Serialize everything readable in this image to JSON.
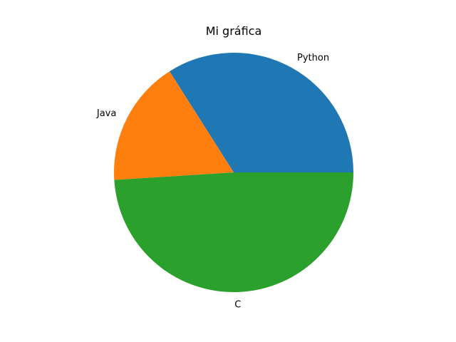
{
  "chart_data": {
    "type": "pie",
    "title": "Mi gráfica",
    "labels": [
      "Python",
      "Java",
      "C"
    ],
    "values": [
      34,
      17,
      49
    ],
    "colors": [
      "#1f77b4",
      "#ff7f0e",
      "#2ca02c"
    ],
    "start_angle": 0,
    "direction": "counterclockwise",
    "legend": "none"
  }
}
